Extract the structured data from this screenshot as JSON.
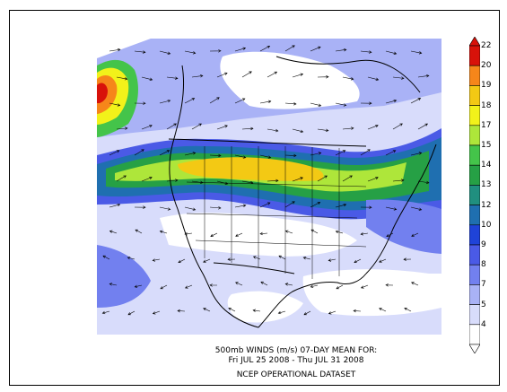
{
  "caption": {
    "line1": "500mb WINDS (m/s)   07-DAY MEAN FOR:",
    "line2": "Fri JUL 25 2008 - Thu JUL 31 2008",
    "line3": "NCEP OPERATIONAL DATASET"
  },
  "colorbar": {
    "levels": [
      {
        "value": "22",
        "color": "#d8120a"
      },
      {
        "value": "20",
        "color": "#f6861a"
      },
      {
        "value": "19",
        "color": "#f3c914"
      },
      {
        "value": "18",
        "color": "#f2f21a"
      },
      {
        "value": "17",
        "color": "#aee63a"
      },
      {
        "value": "15",
        "color": "#44c44a"
      },
      {
        "value": "14",
        "color": "#26a045"
      },
      {
        "value": "13",
        "color": "#208f7f"
      },
      {
        "value": "12",
        "color": "#1f6fb0"
      },
      {
        "value": "10",
        "color": "#1f43d8"
      },
      {
        "value": "9",
        "color": "#4a5ae6"
      },
      {
        "value": "8",
        "color": "#7280ef"
      },
      {
        "value": "7",
        "color": "#a9b2f6"
      },
      {
        "value": "5",
        "color": "#d8dcfb"
      },
      {
        "value": "4",
        "color": "#ffffff"
      }
    ]
  },
  "colors": {
    "land_outline": "#000000",
    "ocean_bg": "#ffffff"
  }
}
